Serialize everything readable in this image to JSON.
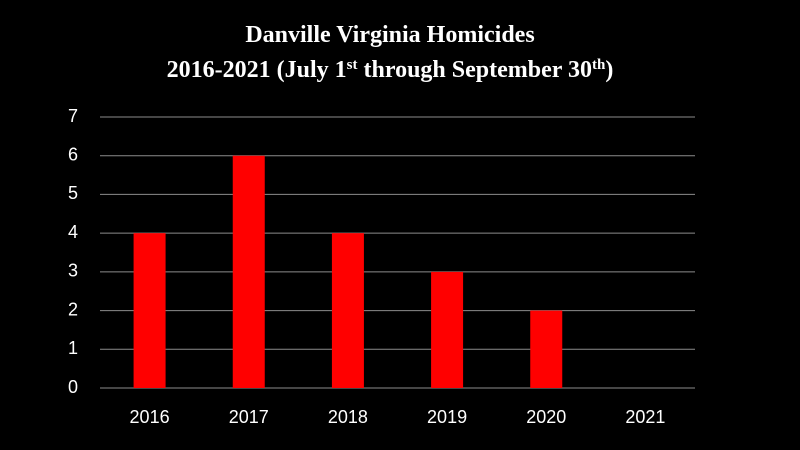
{
  "chart_data": {
    "type": "bar",
    "title": {
      "line1": "Danville Virginia Homicides",
      "line2": [
        {
          "text": "2016-2021 (July 1"
        },
        {
          "text": "st",
          "sup": true
        },
        {
          "text": " through September 30"
        },
        {
          "text": "th",
          "sup": true
        },
        {
          "text": ")"
        }
      ]
    },
    "categories": [
      "2016",
      "2017",
      "2018",
      "2019",
      "2020",
      "2021"
    ],
    "values": [
      4,
      6,
      4,
      3,
      2,
      0
    ],
    "color": "#ff0000",
    "ylim": [
      0,
      7
    ],
    "yticks": [
      0,
      1,
      2,
      3,
      4,
      5,
      6,
      7
    ],
    "grid": true
  }
}
